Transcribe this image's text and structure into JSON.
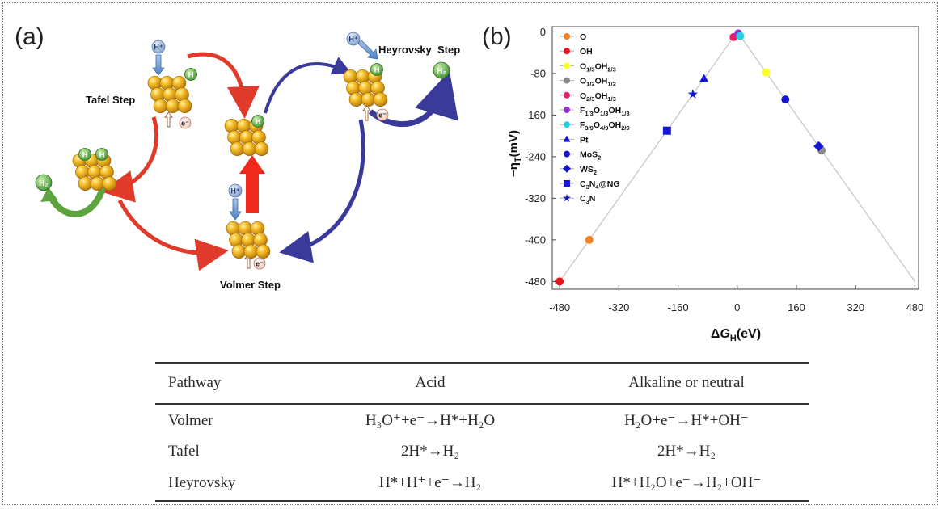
{
  "panel_a": {
    "label": "(a)",
    "steps": {
      "tafel": "Tafel Step",
      "heyrovsky": "Heyrovsky  Step",
      "volmer": "Volmer Step"
    },
    "species": {
      "h_plus": "H⁺",
      "h": "H",
      "h2": "H₂",
      "electron": "e⁻"
    },
    "colors": {
      "red_arrow": "#e03a2a",
      "blue_arrow": "#3a3a9a",
      "green_arrow": "#5ea43e",
      "sphere": "#f2b418"
    }
  },
  "panel_b": {
    "label": "(b)"
  },
  "chart_data": {
    "type": "scatter",
    "xlabel": "ΔG_H(eV)",
    "ylabel": "−η_T(mV)",
    "xlim": [
      -500,
      490
    ],
    "ylim": [
      -495,
      10
    ],
    "xticks": [
      -480,
      -320,
      -160,
      0,
      160,
      320,
      480
    ],
    "yticks": [
      0,
      -80,
      -160,
      -240,
      -320,
      -400,
      -480
    ],
    "grid": false,
    "legend_position": "top-left",
    "volcano_line": [
      [
        -480,
        -480
      ],
      [
        0,
        0
      ],
      [
        480,
        -480
      ]
    ],
    "series": [
      {
        "name": "O",
        "sub": "",
        "color": "#f58220",
        "marker": "circle",
        "points": [
          [
            -400,
            -400
          ]
        ]
      },
      {
        "name": "OH",
        "sub": "",
        "color": "#e8141b",
        "marker": "circle",
        "points": [
          [
            -480,
            -480
          ]
        ]
      },
      {
        "name": "O1/3OH2/3",
        "sub": "O_1/3OH_2/3",
        "color": "#ffff22",
        "marker": "circle",
        "points": [
          [
            78,
            -78
          ]
        ]
      },
      {
        "name": "O1/2OH1/2",
        "sub": "O_1/2OH_1/2",
        "color": "#8a8a8a",
        "marker": "circle",
        "points": [
          [
            228,
            -228
          ]
        ]
      },
      {
        "name": "O2/3OH1/3",
        "sub": "O_2/3OH_1/3",
        "color": "#ec1c6c",
        "marker": "circle",
        "points": [
          [
            -10,
            -10
          ]
        ]
      },
      {
        "name": "F1/3O1/3OH1/3",
        "sub": "F_1/3O_1/3OH_1/3",
        "color": "#9b30d9",
        "marker": "circle",
        "points": [
          [
            3,
            -3
          ]
        ]
      },
      {
        "name": "F3/9O4/9OH2/9",
        "sub": "F_3/9O_4/9OH_2/9",
        "color": "#22d3e6",
        "marker": "circle",
        "points": [
          [
            8,
            -8
          ]
        ]
      },
      {
        "name": "Pt",
        "sub": "",
        "color": "#1515d6",
        "marker": "triangle",
        "points": [
          [
            -90,
            -90
          ]
        ]
      },
      {
        "name": "MoS2",
        "sub": "MoS_2",
        "color": "#1515d6",
        "marker": "circle",
        "points": [
          [
            130,
            -130
          ]
        ]
      },
      {
        "name": "WS2",
        "sub": "WS_2",
        "color": "#1515d6",
        "marker": "diamond",
        "points": [
          [
            220,
            -220
          ]
        ]
      },
      {
        "name": "C3N4@NG",
        "sub": "C_3N_4@NG",
        "color": "#1515d6",
        "marker": "square",
        "points": [
          [
            -190,
            -190
          ]
        ]
      },
      {
        "name": "C3N",
        "sub": "C_3N",
        "color": "#1515d6",
        "marker": "star",
        "points": [
          [
            -120,
            -120
          ]
        ]
      }
    ]
  },
  "table": {
    "headers": [
      "Pathway",
      "Acid",
      "Alkaline or neutral"
    ],
    "rows": [
      [
        "Volmer",
        "H₃O⁺+e⁻→H*+H₂O",
        "H₂O+e⁻→H*+OH⁻"
      ],
      [
        "Tafel",
        "2H*→H₂",
        "2H*→H₂"
      ],
      [
        "Heyrovsky",
        "H*+H⁺+e⁻→H₂",
        "H*+H₂O+e⁻→H₂+OH⁻"
      ]
    ]
  }
}
